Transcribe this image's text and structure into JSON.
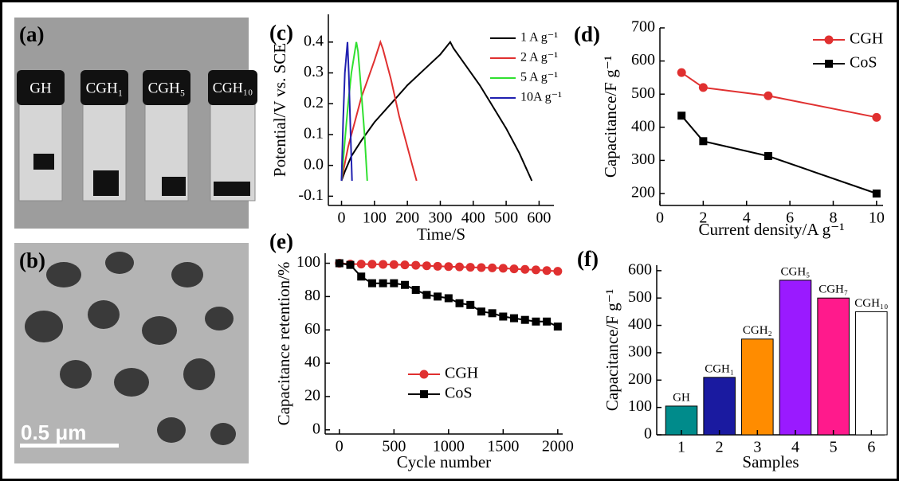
{
  "images": {
    "a": {
      "panel_label": "(a)",
      "vial_labels": [
        "GH",
        "CGH₁",
        "CGH₅",
        "CGH₁₀"
      ]
    },
    "b": {
      "panel_label": "(b)",
      "scale_bar": "0.5 μm"
    }
  },
  "chart_data": [
    {
      "type": "line",
      "panel_label": "(c)",
      "x_label": "Time/S",
      "y_label": "Potential/V vs. SCE",
      "xlim": [
        -40,
        645
      ],
      "ylim": [
        -0.13,
        0.49
      ],
      "xticks": [
        0,
        100,
        200,
        300,
        400,
        500,
        600
      ],
      "yticks": [
        -0.1,
        {
          "value": 0,
          "label": "0.0"
        },
        0.1,
        0.2,
        0.3,
        0.4
      ],
      "legend": "upper right",
      "series": [
        {
          "name": "1  A g⁻¹",
          "color": "#000000",
          "x": [
            0,
            10,
            30,
            60,
            100,
            150,
            200,
            250,
            300,
            330,
            340,
            380,
            420,
            460,
            500,
            540,
            578
          ],
          "values": [
            -0.05,
            -0.02,
            0.03,
            0.08,
            0.14,
            0.2,
            0.26,
            0.31,
            0.36,
            0.4,
            0.38,
            0.32,
            0.26,
            0.19,
            0.12,
            0.04,
            -0.05
          ]
        },
        {
          "name": "2  A g⁻¹",
          "color": "#e03030",
          "x": [
            0,
            5,
            20,
            40,
            60,
            80,
            100,
            118,
            125,
            150,
            175,
            200,
            215,
            228
          ],
          "values": [
            -0.05,
            -0.02,
            0.06,
            0.14,
            0.22,
            0.28,
            0.34,
            0.4,
            0.38,
            0.28,
            0.16,
            0.06,
            0.0,
            -0.05
          ]
        },
        {
          "name": "5  A g⁻¹",
          "color": "#30e030",
          "x": [
            0,
            10,
            20,
            30,
            45,
            50,
            60,
            70,
            78
          ],
          "values": [
            -0.05,
            0.08,
            0.2,
            0.3,
            0.4,
            0.37,
            0.24,
            0.1,
            -0.05
          ]
        },
        {
          "name": "10A g⁻¹",
          "color": "#2020b0",
          "x": [
            0,
            5,
            10,
            18,
            22,
            27,
            32
          ],
          "values": [
            -0.05,
            0.15,
            0.3,
            0.4,
            0.3,
            0.12,
            -0.05
          ]
        }
      ]
    },
    {
      "type": "line",
      "panel_label": "(d)",
      "x_label": "Current density/A g⁻¹",
      "y_label": "Capacitance/F g⁻¹",
      "xlim": [
        0,
        10.3
      ],
      "ylim": [
        164,
        700
      ],
      "xticks": [
        0,
        2,
        4,
        6,
        8,
        10
      ],
      "yticks": [
        200,
        300,
        400,
        500,
        600,
        700
      ],
      "legend": "upper right",
      "series": [
        {
          "name": "CGH",
          "color": "#e03030",
          "marker": "circle",
          "x": [
            1,
            2,
            5,
            10
          ],
          "values": [
            565,
            520,
            495,
            430
          ]
        },
        {
          "name": "CoS",
          "color": "#000000",
          "marker": "square",
          "x": [
            1,
            2,
            5,
            10
          ],
          "values": [
            435,
            358,
            313,
            200
          ]
        }
      ]
    },
    {
      "type": "line",
      "panel_label": "(e)",
      "x_label": "Cycle number",
      "y_label": "Capacitance retention/%",
      "xlim": [
        -130,
        2045
      ],
      "ylim": [
        -2.5,
        106
      ],
      "xticks": [
        0,
        500,
        1000,
        1500,
        2000
      ],
      "yticks": [
        0,
        20,
        40,
        60,
        80,
        100
      ],
      "legend": "lower center",
      "series": [
        {
          "name": "CGH",
          "color": "#e03030",
          "marker": "circle",
          "x": [
            0,
            100,
            200,
            300,
            400,
            500,
            600,
            700,
            800,
            900,
            1000,
            1100,
            1200,
            1300,
            1400,
            1500,
            1600,
            1700,
            1800,
            1900,
            2000
          ],
          "values": [
            100,
            99.5,
            99.5,
            99.4,
            99.3,
            99.2,
            99,
            98.8,
            98.5,
            98.2,
            98,
            97.8,
            97.6,
            97.4,
            97.2,
            97,
            96.6,
            96.3,
            96,
            95.6,
            95.2
          ]
        },
        {
          "name": "CoS",
          "color": "#000000",
          "marker": "square",
          "x": [
            0,
            100,
            200,
            300,
            400,
            500,
            600,
            700,
            800,
            900,
            1000,
            1100,
            1200,
            1300,
            1400,
            1500,
            1600,
            1700,
            1800,
            1900,
            2000
          ],
          "values": [
            100,
            99,
            92,
            88,
            88,
            88,
            87,
            84,
            81,
            80,
            79,
            76,
            75,
            71,
            70,
            68,
            67,
            66,
            65,
            65,
            62
          ]
        }
      ]
    },
    {
      "type": "bar",
      "panel_label": "(f)",
      "x_label": "Samples",
      "y_label": "Capacitance/F g⁻¹",
      "categories": [
        "1",
        "2",
        "3",
        "4",
        "5",
        "6"
      ],
      "values": [
        105,
        210,
        350,
        565,
        500,
        450
      ],
      "colors": [
        "#008b8b",
        "#1a1aa0",
        "#ff8c00",
        "#9a1aff",
        "#ff1a8c",
        "#ffffff"
      ],
      "annotations": [
        "GH",
        "CGH₁",
        "CGH₂",
        "CGH₅",
        "CGH₇",
        "CGH₁₀"
      ],
      "ylim": [
        0,
        620
      ],
      "yticks": [
        0,
        100,
        200,
        300,
        400,
        500,
        600
      ]
    }
  ]
}
